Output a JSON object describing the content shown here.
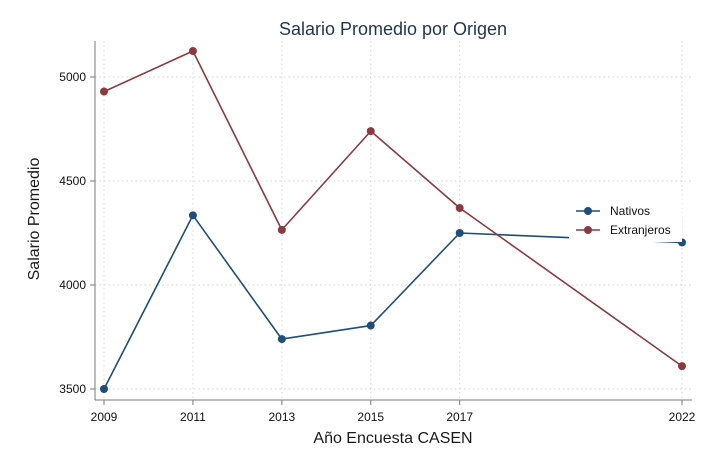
{
  "chart_data": {
    "type": "line",
    "title": "Salario Promedio por Origen",
    "xlabel": "Año Encuesta CASEN",
    "ylabel": "Salario Promedio",
    "x": [
      2009,
      2011,
      2013,
      2015,
      2017,
      2022
    ],
    "x_ticks": [
      "2009",
      "2011",
      "2013",
      "2015",
      "2017",
      "2022"
    ],
    "y_ticks": [
      "3500",
      "4000",
      "4500",
      "5000"
    ],
    "xlim": [
      2009,
      2022
    ],
    "ylim": [
      3500,
      5000
    ],
    "grid": true,
    "legend_position": "right",
    "series": [
      {
        "name": "Nativos",
        "color": "#1f4e79",
        "values": [
          3500,
          4335,
          3740,
          3805,
          4250,
          4205
        ]
      },
      {
        "name": "Extranjeros",
        "color": "#8b3a3e",
        "values": [
          4930,
          5125,
          4265,
          4740,
          4370,
          3610
        ]
      }
    ]
  }
}
